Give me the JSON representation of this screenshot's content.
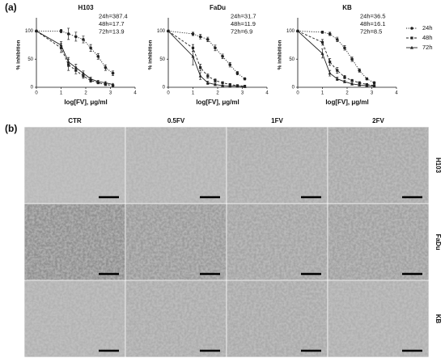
{
  "panel_labels": [
    "(a)",
    "(b)"
  ],
  "chart_data": [
    {
      "type": "line",
      "title": "H103",
      "x_label": "log[FV], μg/ml",
      "y_label": "% inhibition",
      "annotations": [
        "24h=387.4",
        "48h=17.7",
        "72h=13.9"
      ],
      "xlim": [
        0,
        4
      ],
      "xticks": [
        0,
        1,
        2,
        3,
        4
      ],
      "ylim": [
        0,
        115
      ],
      "yticks": [
        0,
        50,
        100
      ],
      "x": [
        0,
        1.0,
        1.3,
        1.6,
        1.9,
        2.2,
        2.5,
        2.8,
        3.1
      ],
      "series": [
        {
          "name": "24h",
          "color": "#222222",
          "linestyle": "dotted",
          "marker": "circle",
          "values": [
            100,
            100,
            95,
            90,
            85,
            70,
            55,
            35,
            25
          ],
          "errors": [
            0,
            3,
            10,
            8,
            6,
            6,
            5,
            5,
            4
          ]
        },
        {
          "name": "48h",
          "color": "#222222",
          "linestyle": "dashed",
          "marker": "square",
          "values": [
            100,
            70,
            40,
            30,
            20,
            12,
            8,
            5,
            3
          ],
          "errors": [
            0,
            8,
            10,
            6,
            4,
            3,
            2,
            2,
            1
          ]
        },
        {
          "name": "72h",
          "color": "#222222",
          "linestyle": "solid",
          "marker": "triangle",
          "values": [
            100,
            75,
            45,
            35,
            25,
            15,
            10,
            8,
            5
          ],
          "errors": [
            0,
            6,
            8,
            6,
            4,
            3,
            2,
            2,
            1
          ]
        }
      ]
    },
    {
      "type": "line",
      "title": "FaDu",
      "x_label": "log[FV], μg/ml",
      "y_label": "% inhibition",
      "annotations": [
        "24h=31.7",
        "48h=11.9",
        "72h=6.9"
      ],
      "xlim": [
        0,
        4
      ],
      "xticks": [
        0,
        1,
        2,
        3,
        4
      ],
      "ylim": [
        0,
        115
      ],
      "yticks": [
        0,
        50,
        100
      ],
      "x": [
        0,
        1.0,
        1.3,
        1.6,
        1.9,
        2.2,
        2.5,
        2.8,
        3.1
      ],
      "series": [
        {
          "name": "24h",
          "color": "#222222",
          "linestyle": "dotted",
          "marker": "circle",
          "values": [
            100,
            95,
            90,
            85,
            70,
            55,
            40,
            25,
            15
          ],
          "errors": [
            0,
            3,
            4,
            4,
            5,
            4,
            4,
            3,
            2
          ]
        },
        {
          "name": "48h",
          "color": "#222222",
          "linestyle": "dashed",
          "marker": "square",
          "values": [
            100,
            70,
            35,
            20,
            12,
            8,
            5,
            3,
            2
          ],
          "errors": [
            0,
            6,
            6,
            4,
            3,
            2,
            1,
            1,
            1
          ]
        },
        {
          "name": "72h",
          "color": "#222222",
          "linestyle": "solid",
          "marker": "triangle",
          "values": [
            100,
            55,
            20,
            8,
            5,
            3,
            2,
            2,
            1
          ],
          "errors": [
            0,
            15,
            6,
            3,
            2,
            1,
            1,
            1,
            1
          ]
        }
      ]
    },
    {
      "type": "line",
      "title": "KB",
      "x_label": "log[FV], μg/ml",
      "y_label": "% inhibition",
      "annotations": [
        "24h=36.5",
        "48h=16.1",
        "72h=8.5"
      ],
      "legend": "right",
      "xlim": [
        0,
        4
      ],
      "xticks": [
        0,
        1,
        2,
        3,
        4
      ],
      "ylim": [
        0,
        115
      ],
      "yticks": [
        0,
        50,
        100
      ],
      "x": [
        0,
        1.0,
        1.3,
        1.6,
        1.9,
        2.2,
        2.5,
        2.8,
        3.1
      ],
      "series": [
        {
          "name": "24h",
          "color": "#222222",
          "linestyle": "dotted",
          "marker": "circle",
          "values": [
            100,
            98,
            95,
            85,
            70,
            50,
            30,
            15,
            8
          ],
          "errors": [
            0,
            2,
            3,
            4,
            4,
            4,
            3,
            2,
            2
          ]
        },
        {
          "name": "48h",
          "color": "#222222",
          "linestyle": "dashed",
          "marker": "square",
          "values": [
            100,
            80,
            45,
            30,
            18,
            12,
            8,
            5,
            3
          ],
          "errors": [
            0,
            5,
            6,
            5,
            3,
            2,
            2,
            1,
            1
          ]
        },
        {
          "name": "72h",
          "color": "#222222",
          "linestyle": "solid",
          "marker": "triangle",
          "values": [
            100,
            60,
            25,
            15,
            10,
            6,
            4,
            3,
            2
          ],
          "errors": [
            0,
            8,
            5,
            3,
            2,
            2,
            1,
            1,
            1
          ]
        }
      ]
    }
  ],
  "micrographs": {
    "columns": [
      "CTR",
      "0.5FV",
      "1FV",
      "2FV"
    ],
    "rows": [
      "H103",
      "FaDu",
      "KB"
    ]
  }
}
